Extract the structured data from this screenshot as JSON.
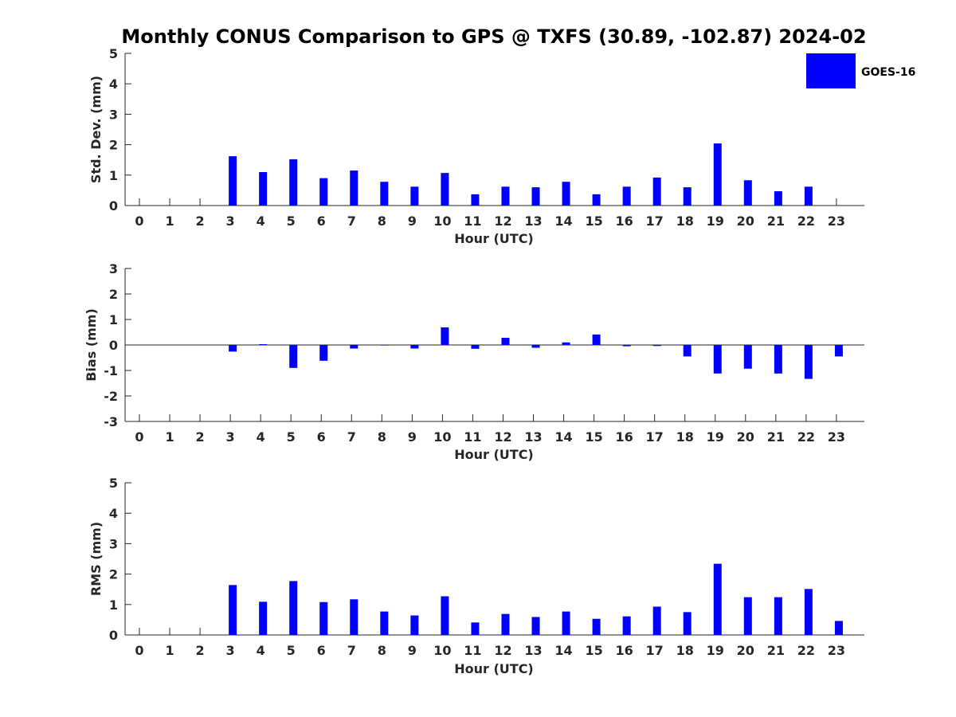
{
  "title": "Monthly CONUS Comparison to GPS @ TXFS (30.89, -102.87) 2024-02",
  "legend": {
    "label": "GOES-16",
    "color": "#0000ff"
  },
  "chart_data": [
    {
      "type": "bar",
      "title": "",
      "xlabel": "Hour (UTC)",
      "ylabel": "Std. Dev. (mm)",
      "ylim": [
        0,
        5
      ],
      "yticks": [
        "0",
        "1",
        "2",
        "3",
        "4",
        "5"
      ],
      "categories": [
        "0",
        "1",
        "2",
        "3",
        "4",
        "5",
        "6",
        "7",
        "8",
        "9",
        "10",
        "11",
        "12",
        "13",
        "14",
        "15",
        "16",
        "17",
        "18",
        "19",
        "20",
        "21",
        "22",
        "23"
      ],
      "series": [
        {
          "name": "GOES-16",
          "color": "#0000ff",
          "values": [
            null,
            null,
            null,
            1.62,
            1.1,
            1.52,
            0.9,
            1.15,
            0.78,
            0.62,
            1.07,
            0.37,
            0.62,
            0.6,
            0.78,
            0.37,
            0.62,
            0.92,
            0.6,
            2.04,
            0.83,
            0.47,
            0.62,
            null
          ]
        }
      ],
      "legend_position": "top-right"
    },
    {
      "type": "bar",
      "title": "",
      "xlabel": "Hour (UTC)",
      "ylabel": "Bias (mm)",
      "ylim": [
        -3,
        3
      ],
      "yticks": [
        "-3",
        "-2",
        "-1",
        "0",
        "1",
        "2",
        "3"
      ],
      "categories": [
        "0",
        "1",
        "2",
        "3",
        "4",
        "5",
        "6",
        "7",
        "8",
        "9",
        "10",
        "11",
        "12",
        "13",
        "14",
        "15",
        "16",
        "17",
        "18",
        "19",
        "20",
        "21",
        "22",
        "23"
      ],
      "series": [
        {
          "name": "GOES-16",
          "color": "#0000ff",
          "values": [
            null,
            null,
            null,
            -0.26,
            0.03,
            -0.9,
            -0.62,
            -0.14,
            -0.02,
            -0.14,
            0.69,
            -0.15,
            0.28,
            -0.11,
            0.1,
            0.41,
            -0.05,
            -0.04,
            -0.45,
            -1.12,
            -0.93,
            -1.12,
            -1.33,
            -0.45
          ]
        }
      ]
    },
    {
      "type": "bar",
      "title": "",
      "xlabel": "Hour (UTC)",
      "ylabel": "RMS (mm)",
      "ylim": [
        0,
        5
      ],
      "yticks": [
        "0",
        "1",
        "2",
        "3",
        "4",
        "5"
      ],
      "categories": [
        "0",
        "1",
        "2",
        "3",
        "4",
        "5",
        "6",
        "7",
        "8",
        "9",
        "10",
        "11",
        "12",
        "13",
        "14",
        "15",
        "16",
        "17",
        "18",
        "19",
        "20",
        "21",
        "22",
        "23"
      ],
      "series": [
        {
          "name": "GOES-16",
          "color": "#0000ff",
          "values": [
            null,
            null,
            null,
            1.64,
            1.09,
            1.77,
            1.08,
            1.17,
            0.77,
            0.64,
            1.27,
            0.41,
            0.69,
            0.59,
            0.77,
            0.53,
            0.61,
            0.93,
            0.75,
            2.34,
            1.24,
            1.24,
            1.51,
            0.46
          ]
        }
      ]
    }
  ]
}
